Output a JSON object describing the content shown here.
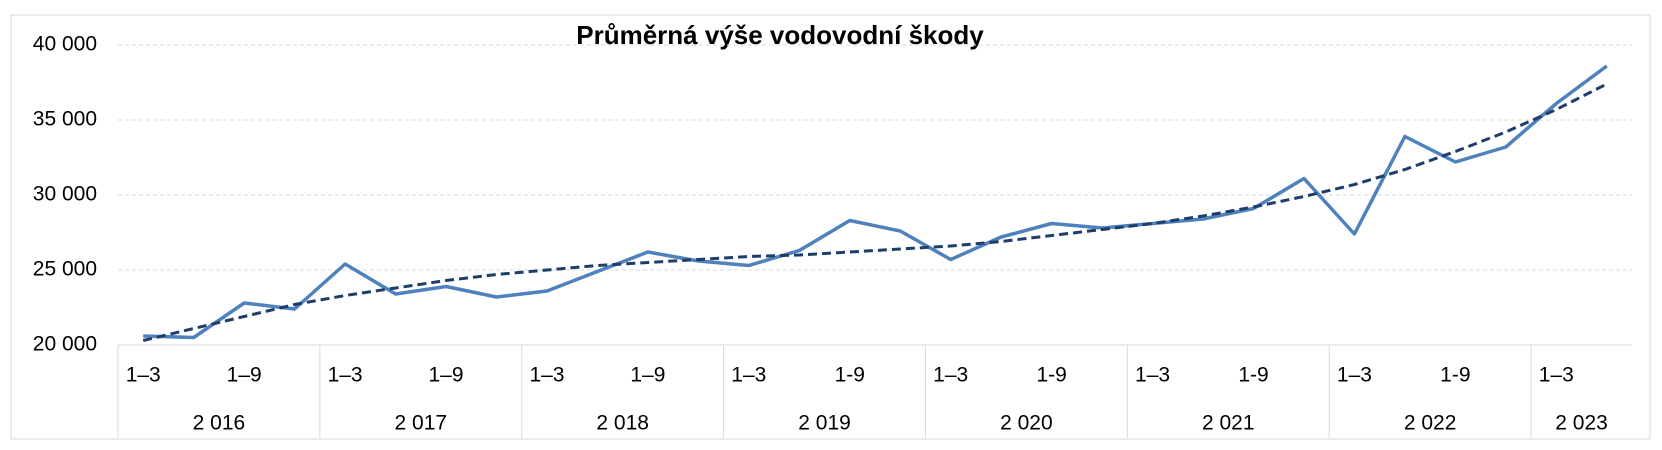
{
  "chart_data": {
    "type": "line",
    "title": "Průměrná výše vodovodní škody",
    "categories": [
      "1–3",
      null,
      "1–9",
      null,
      "1–3",
      null,
      "1–9",
      null,
      "1–3",
      null,
      "1–9",
      null,
      "1–3",
      null,
      "1-9",
      null,
      "1–3",
      null,
      "1-9",
      null,
      "1–3",
      null,
      "1-9",
      null,
      "1–3",
      null,
      "1-9",
      null,
      "1–3",
      null
    ],
    "category_groups": [
      {
        "label": "2 016",
        "size": 4
      },
      {
        "label": "2 017",
        "size": 4
      },
      {
        "label": "2 018",
        "size": 4
      },
      {
        "label": "2 019",
        "size": 4
      },
      {
        "label": "2 020",
        "size": 4
      },
      {
        "label": "2 021",
        "size": 4
      },
      {
        "label": "2 022",
        "size": 4
      },
      {
        "label": "2 023",
        "size": 2
      }
    ],
    "series": [
      {
        "color": "#4f81bd",
        "style": "solid",
        "values": [
          20600,
          20500,
          22800,
          22400,
          25400,
          23400,
          23900,
          23200,
          23600,
          24900,
          26200,
          25600,
          25300,
          26300,
          28300,
          27600,
          25700,
          27200,
          28100,
          27800,
          28100,
          28400,
          29100,
          31100,
          27400,
          33900,
          32200,
          33200,
          36100,
          38600
        ]
      },
      {
        "color": "#1f3d6b",
        "style": "dashed",
        "values": [
          20300,
          21100,
          21900,
          22700,
          23300,
          23800,
          24300,
          24700,
          25000,
          25300,
          25500,
          25700,
          25900,
          26000,
          26200,
          26400,
          26600,
          26900,
          27300,
          27700,
          28100,
          28600,
          29200,
          29900,
          30700,
          31700,
          32900,
          34200,
          35700,
          37400
        ]
      }
    ],
    "ylim": [
      20000,
      40000
    ],
    "yticks": [
      {
        "value": 20000,
        "label": "20 000"
      },
      {
        "value": 25000,
        "label": "25 000"
      },
      {
        "value": 30000,
        "label": "30 000"
      },
      {
        "value": 35000,
        "label": "35 000"
      },
      {
        "value": 40000,
        "label": "40 000"
      }
    ],
    "grid": true
  }
}
